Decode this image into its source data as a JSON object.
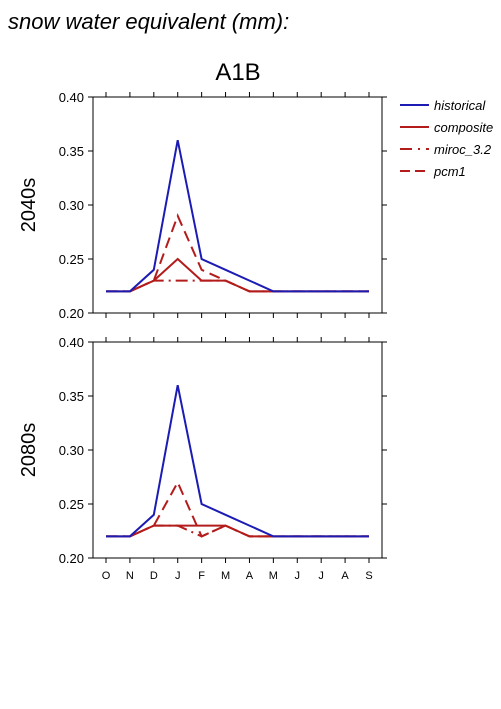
{
  "heading": "snow water equivalent (mm):",
  "chart_data": {
    "type": "line",
    "title": "A1B",
    "categories": [
      "O",
      "N",
      "D",
      "J",
      "F",
      "M",
      "A",
      "M",
      "J",
      "J",
      "A",
      "S"
    ],
    "ylim": [
      0.2,
      0.4
    ],
    "yticks": [
      "0.20",
      "0.25",
      "0.30",
      "0.35",
      "0.40"
    ],
    "legend": {
      "placement": "right",
      "entries": [
        {
          "name": "historical",
          "color": "#1c1cb4",
          "style": "solid"
        },
        {
          "name": "composite",
          "color": "#b41c1c",
          "style": "solid"
        },
        {
          "name": "miroc_3.2",
          "color": "#b41c1c",
          "style": "dash-dot"
        },
        {
          "name": "pcm1",
          "color": "#b41c1c",
          "style": "dashed"
        }
      ]
    },
    "panels": [
      {
        "label": "2040s",
        "series": [
          {
            "name": "historical",
            "values": [
              0.22,
              0.22,
              0.24,
              0.36,
              0.25,
              0.24,
              0.23,
              0.22,
              0.22,
              0.22,
              0.22,
              0.22
            ]
          },
          {
            "name": "composite",
            "values": [
              0.22,
              0.22,
              0.23,
              0.25,
              0.23,
              0.23,
              0.22,
              0.22,
              0.22,
              0.22,
              0.22,
              0.22
            ]
          },
          {
            "name": "miroc_3.2",
            "values": [
              0.22,
              0.22,
              0.23,
              0.23,
              0.23,
              0.23,
              0.22,
              0.22,
              0.22,
              0.22,
              0.22,
              0.22
            ]
          },
          {
            "name": "pcm1",
            "values": [
              0.22,
              0.22,
              0.23,
              0.29,
              0.24,
              0.23,
              0.22,
              0.22,
              0.22,
              0.22,
              0.22,
              0.22
            ]
          }
        ]
      },
      {
        "label": "2080s",
        "series": [
          {
            "name": "historical",
            "values": [
              0.22,
              0.22,
              0.24,
              0.36,
              0.25,
              0.24,
              0.23,
              0.22,
              0.22,
              0.22,
              0.22,
              0.22
            ]
          },
          {
            "name": "composite",
            "values": [
              0.22,
              0.22,
              0.23,
              0.23,
              0.23,
              0.23,
              0.22,
              0.22,
              0.22,
              0.22,
              0.22,
              0.22
            ]
          },
          {
            "name": "miroc_3.2",
            "values": [
              0.22,
              0.22,
              0.23,
              0.23,
              0.22,
              0.23,
              0.22,
              0.22,
              0.22,
              0.22,
              0.22,
              0.22
            ]
          },
          {
            "name": "pcm1",
            "values": [
              0.22,
              0.22,
              0.23,
              0.27,
              0.22,
              0.23,
              0.22,
              0.22,
              0.22,
              0.22,
              0.22,
              0.22
            ]
          }
        ]
      }
    ]
  }
}
